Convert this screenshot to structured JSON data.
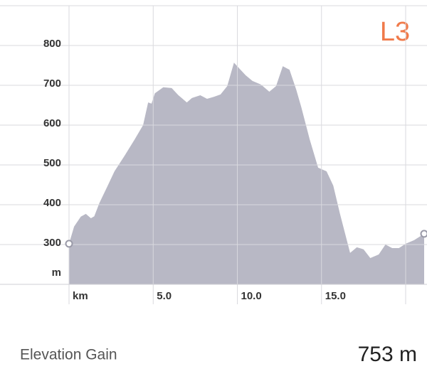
{
  "chart_data": {
    "type": "area",
    "xlabel": "km",
    "ylabel": "m",
    "annotation": "L3",
    "color": "#b8b8c5",
    "x": [
      0,
      0.3,
      0.7,
      1.0,
      1.3,
      1.5,
      1.8,
      2.3,
      2.7,
      3.3,
      3.9,
      4.4,
      4.7,
      4.9,
      5.1,
      5.6,
      6.1,
      6.5,
      7.0,
      7.3,
      7.8,
      8.2,
      8.6,
      9.0,
      9.4,
      9.8,
      10.1,
      10.5,
      10.9,
      11.4,
      11.9,
      12.3,
      12.7,
      13.1,
      13.5,
      13.8,
      14.3,
      14.8,
      15.3,
      15.7,
      16.1,
      16.7,
      17.1,
      17.5,
      17.9,
      18.4,
      18.8,
      19.2,
      19.6,
      20.0,
      20.5,
      21.1
    ],
    "values": [
      302,
      345,
      370,
      377,
      366,
      371,
      404,
      448,
      484,
      523,
      564,
      600,
      657,
      654,
      680,
      695,
      693,
      675,
      657,
      668,
      675,
      666,
      671,
      677,
      698,
      757,
      743,
      725,
      711,
      702,
      684,
      698,
      748,
      739,
      689,
      645,
      564,
      493,
      484,
      448,
      377,
      279,
      293,
      288,
      266,
      275,
      300,
      291,
      291,
      302,
      311,
      327
    ],
    "xlim": [
      0,
      21.1
    ],
    "ylim": [
      200,
      900
    ],
    "yticks": [
      300,
      400,
      500,
      600,
      700,
      800
    ],
    "xticks": [
      {
        "value": 5,
        "label": "5.0"
      },
      {
        "value": 10,
        "label": "10.0"
      },
      {
        "value": 15,
        "label": "15.0"
      }
    ],
    "xgrid": [
      0,
      5,
      10,
      15,
      20
    ],
    "grid": true
  },
  "stats": {
    "label": "Elevation Gain",
    "value": "753 m"
  }
}
